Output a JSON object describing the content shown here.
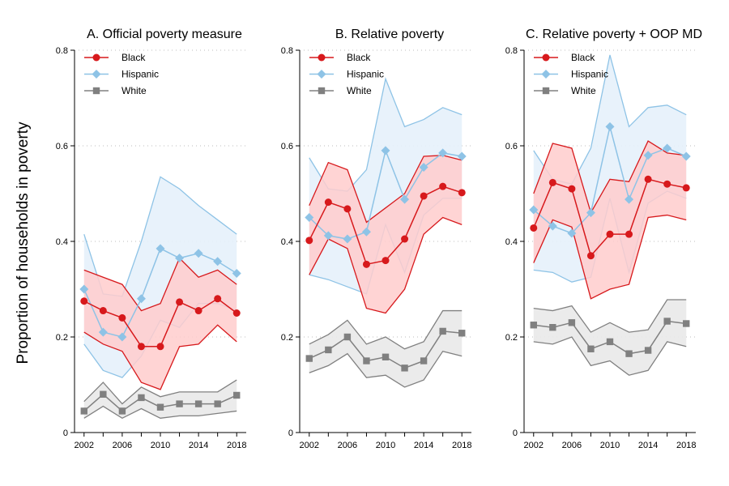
{
  "figure": {
    "ylabel": "Proportion of households in poverty"
  },
  "chart_data": [
    {
      "type": "line",
      "title": "A. Official poverty measure",
      "ylim": [
        0,
        0.8
      ],
      "yticks": [
        "0",
        "0.2",
        "0.4",
        "0.6",
        "0.8"
      ],
      "xlim": [
        2001,
        2019
      ],
      "xticks": [
        "2002",
        "2006",
        "2010",
        "2014",
        "2018"
      ],
      "x": [
        2002,
        2004,
        2006,
        2008,
        2010,
        2012,
        2014,
        2016,
        2018
      ],
      "grid": "horizontal-dotted",
      "legend": "top-left",
      "series": [
        {
          "name": "Black",
          "color": "#d7191c",
          "fill": "#ffcccc",
          "marker": "circle",
          "values": [
            0.275,
            0.255,
            0.24,
            0.18,
            0.18,
            0.273,
            0.255,
            0.28,
            0.25
          ],
          "lower": [
            0.21,
            0.185,
            0.17,
            0.105,
            0.09,
            0.18,
            0.185,
            0.225,
            0.19
          ],
          "upper": [
            0.34,
            0.325,
            0.31,
            0.255,
            0.27,
            0.365,
            0.325,
            0.34,
            0.31
          ]
        },
        {
          "name": "Hispanic",
          "color": "#8ec3e6",
          "fill": "#e6f1fb",
          "marker": "diamond",
          "values": [
            0.3,
            0.21,
            0.2,
            0.28,
            0.385,
            0.365,
            0.375,
            0.358,
            0.333
          ],
          "lower": [
            0.185,
            0.13,
            0.115,
            0.16,
            0.235,
            0.22,
            0.27,
            0.27,
            0.255
          ],
          "upper": [
            0.415,
            0.29,
            0.285,
            0.4,
            0.535,
            0.51,
            0.475,
            0.445,
            0.415
          ]
        },
        {
          "name": "White",
          "color": "#808080",
          "fill": "#e9e9e9",
          "marker": "square",
          "values": [
            0.045,
            0.08,
            0.045,
            0.073,
            0.053,
            0.06,
            0.06,
            0.06,
            0.078
          ],
          "lower": [
            0.03,
            0.055,
            0.03,
            0.05,
            0.03,
            0.035,
            0.035,
            0.04,
            0.045
          ],
          "upper": [
            0.065,
            0.105,
            0.06,
            0.095,
            0.075,
            0.085,
            0.085,
            0.085,
            0.11
          ]
        }
      ]
    },
    {
      "type": "line",
      "title": "B. Relative poverty",
      "ylim": [
        0,
        0.8
      ],
      "yticks": [
        "0",
        "0.2",
        "0.4",
        "0.6",
        "0.8"
      ],
      "xlim": [
        2001,
        2019
      ],
      "xticks": [
        "2002",
        "2006",
        "2010",
        "2014",
        "2018"
      ],
      "x": [
        2002,
        2004,
        2006,
        2008,
        2010,
        2012,
        2014,
        2016,
        2018
      ],
      "grid": "horizontal-dotted",
      "legend": "top-left",
      "series": [
        {
          "name": "Black",
          "color": "#d7191c",
          "fill": "#ffcccc",
          "marker": "circle",
          "values": [
            0.402,
            0.482,
            0.468,
            0.352,
            0.36,
            0.405,
            0.495,
            0.515,
            0.502
          ],
          "lower": [
            0.33,
            0.405,
            0.385,
            0.26,
            0.25,
            0.3,
            0.415,
            0.45,
            0.435
          ],
          "upper": [
            0.475,
            0.565,
            0.55,
            0.44,
            0.47,
            0.5,
            0.578,
            0.58,
            0.57
          ]
        },
        {
          "name": "Hispanic",
          "color": "#8ec3e6",
          "fill": "#e6f1fb",
          "marker": "diamond",
          "values": [
            0.45,
            0.412,
            0.405,
            0.42,
            0.59,
            0.488,
            0.555,
            0.585,
            0.578
          ],
          "lower": [
            0.33,
            0.32,
            0.305,
            0.29,
            0.435,
            0.335,
            0.455,
            0.49,
            0.49
          ],
          "upper": [
            0.575,
            0.51,
            0.505,
            0.55,
            0.74,
            0.64,
            0.655,
            0.68,
            0.665
          ]
        },
        {
          "name": "White",
          "color": "#808080",
          "fill": "#e9e9e9",
          "marker": "square",
          "values": [
            0.155,
            0.173,
            0.2,
            0.15,
            0.158,
            0.135,
            0.15,
            0.212,
            0.208
          ],
          "lower": [
            0.125,
            0.14,
            0.165,
            0.115,
            0.12,
            0.095,
            0.11,
            0.17,
            0.16
          ],
          "upper": [
            0.185,
            0.205,
            0.235,
            0.185,
            0.2,
            0.175,
            0.19,
            0.255,
            0.255
          ]
        }
      ]
    },
    {
      "type": "line",
      "title": "C. Relative poverty + OOP MD",
      "ylim": [
        0,
        0.8
      ],
      "yticks": [
        "0",
        "0.2",
        "0.4",
        "0.6",
        "0.8"
      ],
      "xlim": [
        2001,
        2019
      ],
      "xticks": [
        "2002",
        "2006",
        "2010",
        "2014",
        "2018"
      ],
      "x": [
        2002,
        2004,
        2006,
        2008,
        2010,
        2012,
        2014,
        2016,
        2018
      ],
      "grid": "horizontal-dotted",
      "legend": "top-left",
      "series": [
        {
          "name": "Black",
          "color": "#d7191c",
          "fill": "#ffcccc",
          "marker": "circle",
          "values": [
            0.428,
            0.523,
            0.51,
            0.37,
            0.415,
            0.415,
            0.53,
            0.52,
            0.512
          ],
          "lower": [
            0.355,
            0.445,
            0.43,
            0.28,
            0.3,
            0.31,
            0.45,
            0.455,
            0.445
          ],
          "upper": [
            0.5,
            0.605,
            0.595,
            0.46,
            0.53,
            0.525,
            0.61,
            0.585,
            0.58
          ]
        },
        {
          "name": "Hispanic",
          "color": "#8ec3e6",
          "fill": "#e6f1fb",
          "marker": "diamond",
          "values": [
            0.466,
            0.432,
            0.417,
            0.46,
            0.64,
            0.488,
            0.58,
            0.595,
            0.578
          ],
          "lower": [
            0.34,
            0.335,
            0.315,
            0.325,
            0.49,
            0.335,
            0.48,
            0.505,
            0.49
          ],
          "upper": [
            0.59,
            0.53,
            0.52,
            0.595,
            0.79,
            0.64,
            0.68,
            0.685,
            0.665
          ]
        },
        {
          "name": "White",
          "color": "#808080",
          "fill": "#e9e9e9",
          "marker": "square",
          "values": [
            0.225,
            0.22,
            0.23,
            0.175,
            0.19,
            0.165,
            0.172,
            0.233,
            0.228
          ],
          "lower": [
            0.19,
            0.185,
            0.2,
            0.14,
            0.15,
            0.12,
            0.13,
            0.19,
            0.18
          ],
          "upper": [
            0.26,
            0.255,
            0.265,
            0.21,
            0.23,
            0.21,
            0.215,
            0.278,
            0.278
          ]
        }
      ]
    }
  ]
}
